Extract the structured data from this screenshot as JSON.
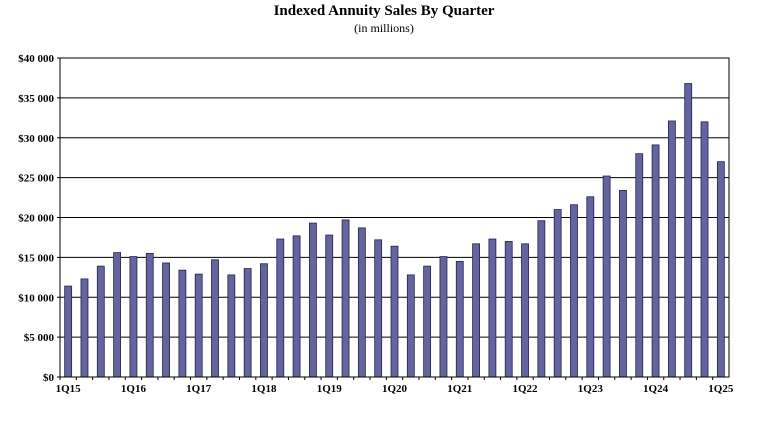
{
  "chart_data": {
    "type": "bar",
    "title": "Indexed Annuity Sales By Quarter",
    "subtitle": "(in millions)",
    "xlabel": "",
    "ylabel": "",
    "ylim": [
      0,
      40000
    ],
    "y_ticks": [
      0,
      5000,
      10000,
      15000,
      20000,
      25000,
      30000,
      35000,
      40000
    ],
    "y_tick_labels": [
      "$0",
      "$5 000",
      "$10 000",
      "$15 000",
      "$20 000",
      "$25 000",
      "$30 000",
      "$35 000",
      "$40 000"
    ],
    "grid": true,
    "categories": [
      "1Q15",
      "2Q15",
      "3Q15",
      "4Q15",
      "1Q16",
      "2Q16",
      "3Q16",
      "4Q16",
      "1Q17",
      "2Q17",
      "3Q17",
      "4Q17",
      "1Q18",
      "2Q18",
      "3Q18",
      "4Q18",
      "1Q19",
      "2Q19",
      "3Q19",
      "4Q19",
      "1Q20",
      "2Q20",
      "3Q20",
      "4Q20",
      "1Q21",
      "2Q21",
      "3Q21",
      "4Q21",
      "1Q22",
      "2Q22",
      "3Q22",
      "4Q22",
      "1Q23",
      "2Q23",
      "3Q23",
      "4Q23",
      "1Q24",
      "2Q24",
      "3Q24",
      "4Q24",
      "1Q25"
    ],
    "x_tick_labels": [
      {
        "index": 0,
        "label": "1Q15"
      },
      {
        "index": 4,
        "label": "1Q16"
      },
      {
        "index": 8,
        "label": "1Q17"
      },
      {
        "index": 12,
        "label": "1Q18"
      },
      {
        "index": 16,
        "label": "1Q19"
      },
      {
        "index": 20,
        "label": "1Q20"
      },
      {
        "index": 24,
        "label": "1Q21"
      },
      {
        "index": 28,
        "label": "1Q22"
      },
      {
        "index": 32,
        "label": "1Q23"
      },
      {
        "index": 36,
        "label": "1Q24"
      },
      {
        "index": 40,
        "label": "1Q25"
      }
    ],
    "values": [
      11400,
      12300,
      13900,
      15600,
      15100,
      15500,
      14300,
      13400,
      12900,
      14700,
      12800,
      13600,
      14200,
      17300,
      17700,
      19300,
      17800,
      19700,
      18700,
      17200,
      16400,
      12800,
      13900,
      15100,
      14500,
      16700,
      17300,
      17000,
      16700,
      19600,
      21000,
      21600,
      22600,
      25200,
      23400,
      28000,
      29100,
      32100,
      36800,
      32000,
      27000
    ],
    "bar_color": "#6464A0",
    "bar_stroke": "#22224a"
  }
}
